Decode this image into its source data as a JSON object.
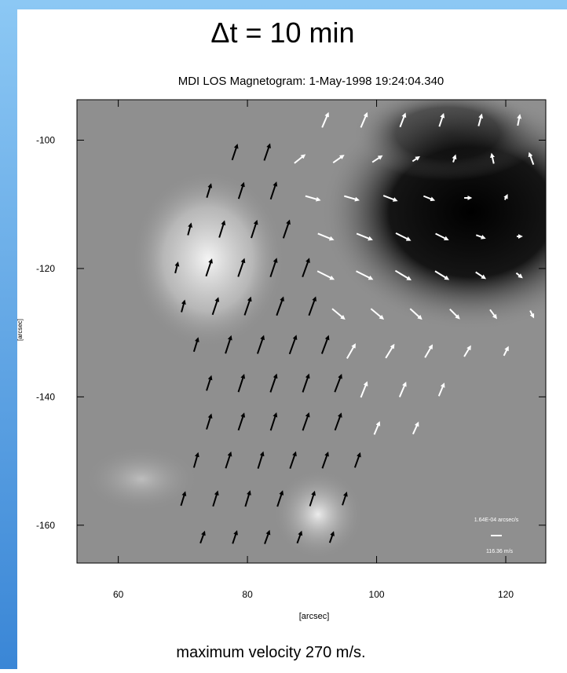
{
  "chart_data": {
    "type": "vector-field",
    "title": "Δt = 10 min",
    "subtitle": "MDI LOS Magnetogram:  1-May-1998 19:24:04.340",
    "x_label": "[arcsec]",
    "y_label": "[arcsec]",
    "caption": "maximum velocity 270 m/s.",
    "xlim": [
      53.6,
      126.2
    ],
    "ylim": [
      -165.9,
      -93.7
    ],
    "xticks": [
      60,
      80,
      100,
      120
    ],
    "yticks": [
      -100,
      -120,
      -140,
      -160
    ],
    "scale": {
      "label": "1.64E-04 arcsec/s",
      "value_label": "116.36 m/s",
      "value": 116.36,
      "color": "#ffffff"
    },
    "vector_sets": [
      {
        "color": "#000000",
        "x": [
          78,
          83,
          74,
          79,
          84,
          71,
          76,
          81,
          86,
          69,
          74,
          79,
          84,
          89,
          70,
          75,
          80,
          85,
          90,
          72,
          77,
          82,
          87,
          92,
          74,
          79,
          84,
          89,
          94,
          74,
          79,
          84,
          89,
          94,
          72,
          77,
          82,
          87,
          92,
          97,
          70,
          75,
          80,
          85,
          90,
          95,
          73,
          78,
          83,
          88,
          93
        ],
        "y": [
          -102,
          -102,
          -108,
          -108,
          -108,
          -114,
          -114,
          -114,
          -114,
          -120,
          -120,
          -120,
          -120,
          -120,
          -126,
          -126,
          -126,
          -126,
          -126,
          -132,
          -132,
          -132,
          -132,
          -132,
          -138,
          -138,
          -138,
          -138,
          -138,
          -144,
          -144,
          -144,
          -144,
          -144,
          -150,
          -150,
          -150,
          -150,
          -150,
          -150,
          -156,
          -156,
          -156,
          -156,
          -156,
          -156,
          -162,
          -162,
          -162,
          -162,
          -162
        ],
        "u": [
          50,
          55,
          40,
          50,
          55,
          30,
          50,
          55,
          60,
          25,
          55,
          60,
          60,
          65,
          30,
          55,
          60,
          65,
          65,
          40,
          55,
          60,
          65,
          65,
          45,
          55,
          60,
          60,
          65,
          45,
          55,
          55,
          60,
          60,
          40,
          50,
          50,
          55,
          55,
          50,
          40,
          45,
          45,
          50,
          45,
          40,
          40,
          40,
          45,
          40,
          35
        ],
        "v": [
          150,
          160,
          130,
          155,
          165,
          110,
          160,
          170,
          175,
          100,
          165,
          175,
          180,
          180,
          110,
          165,
          175,
          180,
          180,
          130,
          170,
          175,
          180,
          175,
          140,
          170,
          175,
          175,
          170,
          145,
          165,
          170,
          170,
          165,
          140,
          155,
          160,
          160,
          155,
          140,
          130,
          145,
          150,
          150,
          140,
          120,
          110,
          120,
          125,
          110,
          100
        ]
      },
      {
        "color": "#ffffff",
        "x": [
          92,
          98,
          104,
          110,
          116,
          122,
          88,
          94,
          100,
          106,
          112,
          118,
          124,
          90,
          96,
          102,
          108,
          114,
          120,
          92,
          98,
          104,
          110,
          116,
          122,
          92,
          98,
          104,
          110,
          116,
          122,
          94,
          100,
          106,
          112,
          118,
          124,
          96,
          102,
          108,
          114,
          120,
          98,
          104,
          110,
          100,
          106
        ],
        "y": [
          -97,
          -97,
          -97,
          -97,
          -97,
          -97,
          -103,
          -103,
          -103,
          -103,
          -103,
          -103,
          -103,
          -109,
          -109,
          -109,
          -109,
          -109,
          -109,
          -115,
          -115,
          -115,
          -115,
          -115,
          -115,
          -121,
          -121,
          -121,
          -121,
          -121,
          -121,
          -127,
          -127,
          -127,
          -127,
          -127,
          -127,
          -133,
          -133,
          -133,
          -133,
          -133,
          -139,
          -139,
          -139,
          -145,
          -145
        ],
        "u": [
          60,
          60,
          50,
          40,
          30,
          20,
          100,
          100,
          90,
          60,
          20,
          -20,
          -40,
          140,
          140,
          130,
          100,
          60,
          20,
          150,
          150,
          140,
          120,
          80,
          40,
          160,
          160,
          150,
          130,
          90,
          50,
          120,
          120,
          110,
          90,
          60,
          30,
          80,
          80,
          70,
          60,
          40,
          60,
          60,
          50,
          50,
          50
        ],
        "v": [
          140,
          140,
          130,
          120,
          110,
          100,
          80,
          70,
          60,
          40,
          60,
          90,
          110,
          -40,
          -40,
          -50,
          -40,
          0,
          40,
          -60,
          -60,
          -70,
          -60,
          -30,
          0,
          -80,
          -80,
          -90,
          -80,
          -60,
          -40,
          -100,
          -100,
          -100,
          -90,
          -80,
          -60,
          140,
          130,
          120,
          100,
          80,
          150,
          140,
          120,
          120,
          110
        ]
      }
    ]
  }
}
